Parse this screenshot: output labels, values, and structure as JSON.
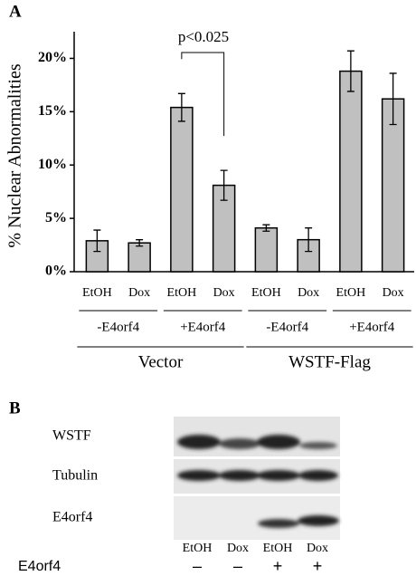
{
  "chart_data": {
    "type": "bar",
    "panel_label": "A",
    "ylabel": "% Nuclear Abnormalities",
    "categories": [
      "EtOH",
      "Dox",
      "EtOH",
      "Dox",
      "EtOH",
      "Dox",
      "EtOH",
      "Dox"
    ],
    "values": [
      2.9,
      2.7,
      15.4,
      8.1,
      4.1,
      3.0,
      18.8,
      16.2
    ],
    "errors": [
      1.0,
      0.3,
      1.3,
      1.4,
      0.3,
      1.1,
      1.9,
      2.4
    ],
    "color": "#c0c0c0",
    "ylim": [
      0,
      22.5
    ],
    "yticks": [
      {
        "value": 0,
        "label": "0%"
      },
      {
        "value": 5,
        "label": "5%"
      },
      {
        "value": 10,
        "label": "10%"
      },
      {
        "value": 15,
        "label": "15%"
      },
      {
        "value": 20,
        "label": "20%"
      }
    ],
    "groups": [
      "-E4orf4",
      "+E4orf4",
      "-E4orf4",
      "+E4orf4"
    ],
    "supergroups": [
      "Vector",
      "WSTF-Flag"
    ],
    "annotation": "p<0.025"
  },
  "blot": {
    "panel_label": "B",
    "rows": [
      "WSTF",
      "Tubulin",
      "E4orf4"
    ],
    "lanes": [
      "EtOH",
      "Dox",
      "EtOH",
      "Dox"
    ],
    "treatment_label": "E4orf4",
    "treatment": [
      "–",
      "–",
      "+",
      "+"
    ]
  }
}
